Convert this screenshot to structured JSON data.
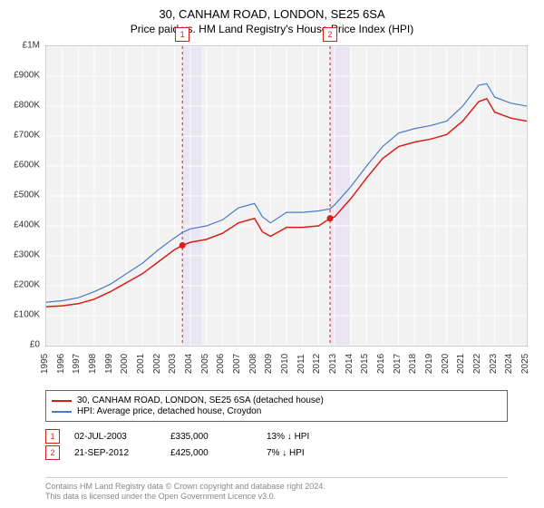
{
  "header": {
    "title": "30, CANHAM ROAD, LONDON, SE25 6SA",
    "subtitle": "Price paid vs. HM Land Registry's House Price Index (HPI)"
  },
  "chart": {
    "type": "line",
    "background_color": "#f2f2f2",
    "plot_border_color": "#cccccc",
    "grid_color": "#ffffff",
    "x_domain": [
      1995,
      2025
    ],
    "y_domain": [
      0,
      1000000
    ],
    "x_ticks": [
      1995,
      1996,
      1997,
      1998,
      1999,
      2000,
      2001,
      2002,
      2003,
      2004,
      2005,
      2006,
      2007,
      2008,
      2009,
      2010,
      2011,
      2012,
      2013,
      2014,
      2015,
      2016,
      2017,
      2018,
      2019,
      2020,
      2021,
      2022,
      2023,
      2024,
      2025
    ],
    "y_ticks": [
      0,
      100000,
      200000,
      300000,
      400000,
      500000,
      600000,
      700000,
      800000,
      900000,
      1000000
    ],
    "y_tick_labels": [
      "£0",
      "£100K",
      "£200K",
      "£300K",
      "£400K",
      "£500K",
      "£600K",
      "£700K",
      "£800K",
      "£900K",
      "£1M"
    ],
    "y_label_fontsize": 10,
    "x_label_fontsize": 10,
    "x_label_rotation": -90,
    "series": [
      {
        "name": "price_paid",
        "label": "30, CANHAM ROAD, LONDON, SE25 6SA (detached house)",
        "color": "#d91e18",
        "width": 1.5,
        "points": [
          [
            1995,
            130000
          ],
          [
            1996,
            133000
          ],
          [
            1997,
            140000
          ],
          [
            1998,
            155000
          ],
          [
            1999,
            180000
          ],
          [
            2000,
            210000
          ],
          [
            2001,
            240000
          ],
          [
            2002,
            280000
          ],
          [
            2003,
            320000
          ],
          [
            2003.5,
            335000
          ],
          [
            2004,
            345000
          ],
          [
            2005,
            355000
          ],
          [
            2006,
            375000
          ],
          [
            2007,
            410000
          ],
          [
            2008,
            425000
          ],
          [
            2008.5,
            380000
          ],
          [
            2009,
            365000
          ],
          [
            2010,
            395000
          ],
          [
            2011,
            395000
          ],
          [
            2012,
            400000
          ],
          [
            2012.72,
            425000
          ],
          [
            2013,
            430000
          ],
          [
            2014,
            490000
          ],
          [
            2015,
            560000
          ],
          [
            2016,
            625000
          ],
          [
            2017,
            665000
          ],
          [
            2018,
            680000
          ],
          [
            2019,
            690000
          ],
          [
            2020,
            705000
          ],
          [
            2021,
            750000
          ],
          [
            2022,
            815000
          ],
          [
            2022.5,
            825000
          ],
          [
            2023,
            780000
          ],
          [
            2024,
            760000
          ],
          [
            2025,
            750000
          ]
        ]
      },
      {
        "name": "hpi",
        "label": "HPI: Average price, detached house, Croydon",
        "color": "#4a7bc9",
        "width": 1.2,
        "points": [
          [
            1995,
            145000
          ],
          [
            1996,
            150000
          ],
          [
            1997,
            160000
          ],
          [
            1998,
            180000
          ],
          [
            1999,
            205000
          ],
          [
            2000,
            240000
          ],
          [
            2001,
            275000
          ],
          [
            2002,
            320000
          ],
          [
            2003,
            360000
          ],
          [
            2003.5,
            378000
          ],
          [
            2004,
            390000
          ],
          [
            2005,
            400000
          ],
          [
            2006,
            420000
          ],
          [
            2007,
            460000
          ],
          [
            2008,
            475000
          ],
          [
            2008.5,
            430000
          ],
          [
            2009,
            410000
          ],
          [
            2010,
            445000
          ],
          [
            2011,
            445000
          ],
          [
            2012,
            450000
          ],
          [
            2012.72,
            457000
          ],
          [
            2013,
            470000
          ],
          [
            2014,
            530000
          ],
          [
            2015,
            600000
          ],
          [
            2016,
            665000
          ],
          [
            2017,
            710000
          ],
          [
            2018,
            725000
          ],
          [
            2019,
            735000
          ],
          [
            2020,
            750000
          ],
          [
            2021,
            800000
          ],
          [
            2022,
            870000
          ],
          [
            2022.5,
            875000
          ],
          [
            2023,
            830000
          ],
          [
            2024,
            810000
          ],
          [
            2025,
            800000
          ]
        ]
      }
    ],
    "event_markers": [
      {
        "n": "1",
        "x": 2003.5,
        "date": "02-JUL-2003",
        "price": "£335,000",
        "delta": "13% ↓ HPI",
        "band_start": 2003.5,
        "band_end": 2004.7,
        "band_color": "#eae5f2"
      },
      {
        "n": "2",
        "x": 2012.72,
        "date": "21-SEP-2012",
        "price": "£425,000",
        "delta": "7% ↓ HPI",
        "band_start": 2012.72,
        "band_end": 2014.0,
        "band_color": "#eae5f2"
      }
    ],
    "event_line_color": "#d91e18",
    "event_line_dash": "3,3",
    "marker_dot_color": "#d91e18",
    "marker_dot_radius": 3.5
  },
  "footer": {
    "line1": "Contains HM Land Registry data © Crown copyright and database right 2024.",
    "line2": "This data is licensed under the Open Government Licence v3.0."
  }
}
